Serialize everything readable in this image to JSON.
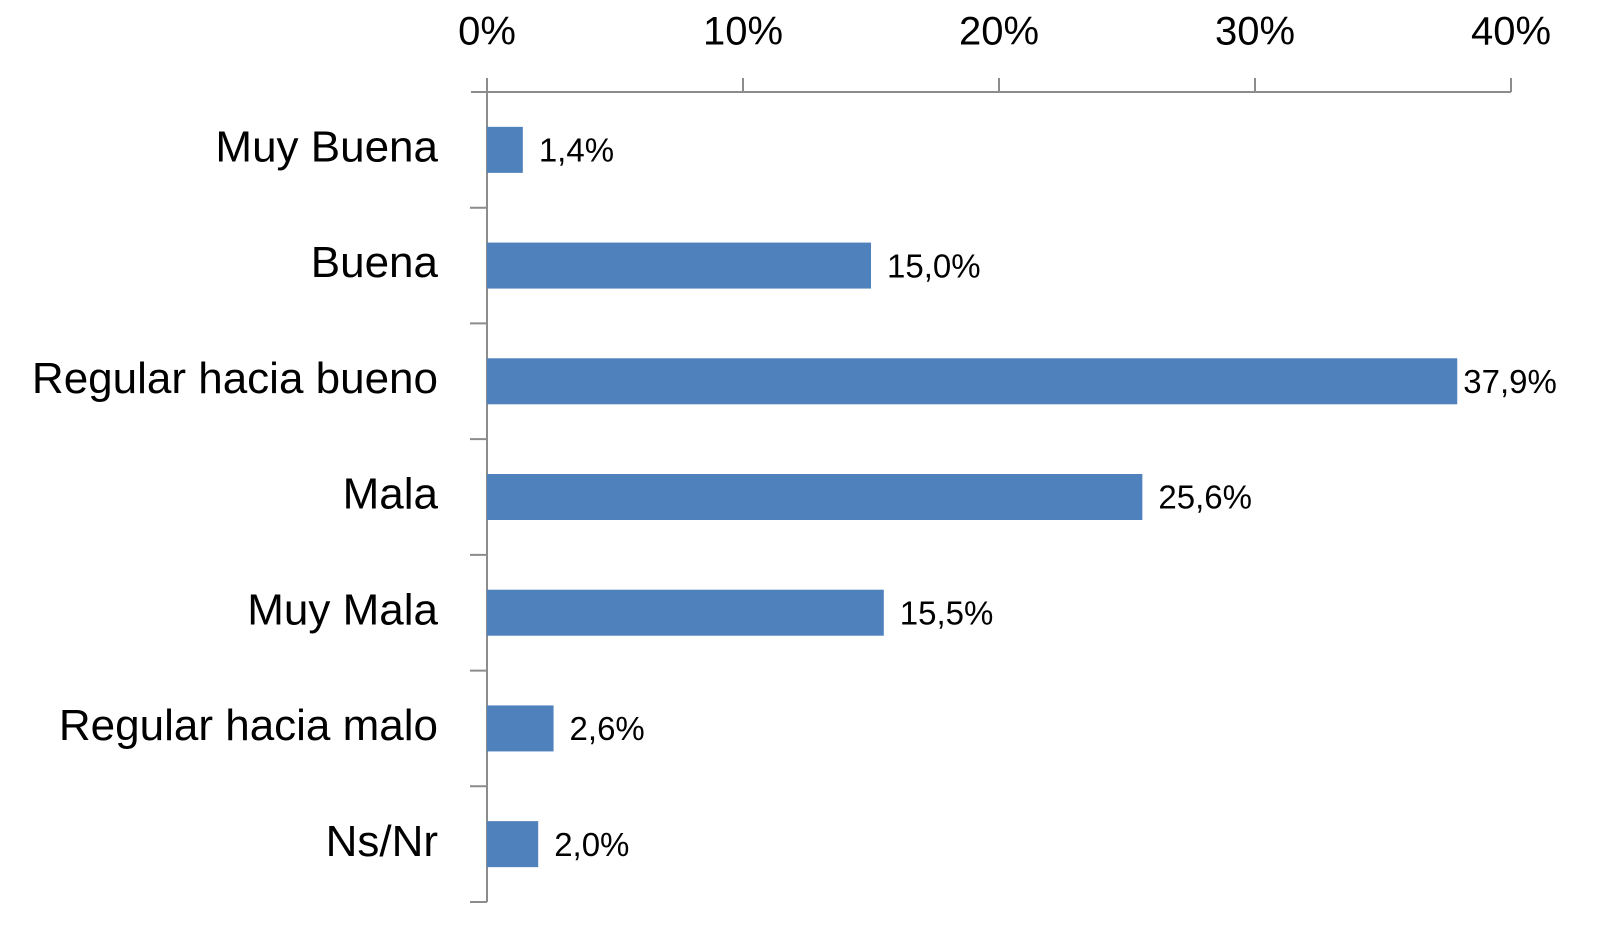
{
  "chart_data": {
    "type": "bar",
    "orientation": "horizontal",
    "categories": [
      "Muy Buena",
      "Buena",
      "Regular hacia bueno",
      "Mala",
      "Muy Mala",
      "Regular hacia malo",
      "Ns/Nr"
    ],
    "values": [
      1.4,
      15.0,
      37.9,
      25.6,
      15.5,
      2.6,
      2.0
    ],
    "value_labels": [
      "1,4%",
      "15,0%",
      "37,9%",
      "25,6%",
      "15,5%",
      "2,6%",
      "2,0%"
    ],
    "color": "#4f81bd",
    "xlim": [
      0,
      40
    ],
    "xticks": [
      {
        "value": 0,
        "label": "0%"
      },
      {
        "value": 10,
        "label": "10%"
      },
      {
        "value": 20,
        "label": "20%"
      },
      {
        "value": 30,
        "label": "30%"
      },
      {
        "value": 40,
        "label": "40%"
      }
    ],
    "grid": false
  }
}
